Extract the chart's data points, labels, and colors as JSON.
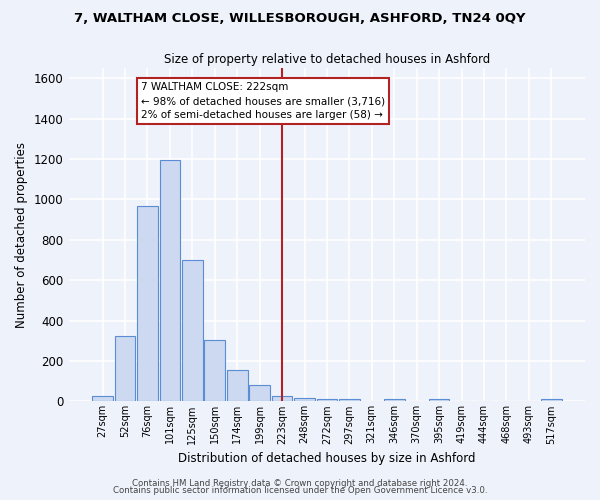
{
  "title": "7, WALTHAM CLOSE, WILLESBOROUGH, ASHFORD, TN24 0QY",
  "subtitle": "Size of property relative to detached houses in Ashford",
  "xlabel": "Distribution of detached houses by size in Ashford",
  "ylabel": "Number of detached properties",
  "bar_labels": [
    "27sqm",
    "52sqm",
    "76sqm",
    "101sqm",
    "125sqm",
    "150sqm",
    "174sqm",
    "199sqm",
    "223sqm",
    "248sqm",
    "272sqm",
    "297sqm",
    "321sqm",
    "346sqm",
    "370sqm",
    "395sqm",
    "419sqm",
    "444sqm",
    "468sqm",
    "493sqm",
    "517sqm"
  ],
  "bar_values": [
    25,
    325,
    965,
    1195,
    700,
    305,
    155,
    80,
    25,
    15,
    10,
    10,
    0,
    10,
    0,
    10,
    0,
    0,
    0,
    0,
    10
  ],
  "bar_color": "#ccd9f0",
  "bar_edge_color": "#5b8dd4",
  "background_color": "#eef2fb",
  "grid_color": "#ffffff",
  "vline_x": 8,
  "vline_color": "#b22222",
  "annotation_text": "7 WALTHAM CLOSE: 222sqm\n← 98% of detached houses are smaller (3,716)\n2% of semi-detached houses are larger (58) →",
  "annotation_box_color": "#ffffff",
  "annotation_box_edge": "#b22222",
  "ylim": [
    0,
    1650
  ],
  "yticks": [
    0,
    200,
    400,
    600,
    800,
    1000,
    1200,
    1400,
    1600
  ],
  "footer1": "Contains HM Land Registry data © Crown copyright and database right 2024.",
  "footer2": "Contains public sector information licensed under the Open Government Licence v3.0."
}
